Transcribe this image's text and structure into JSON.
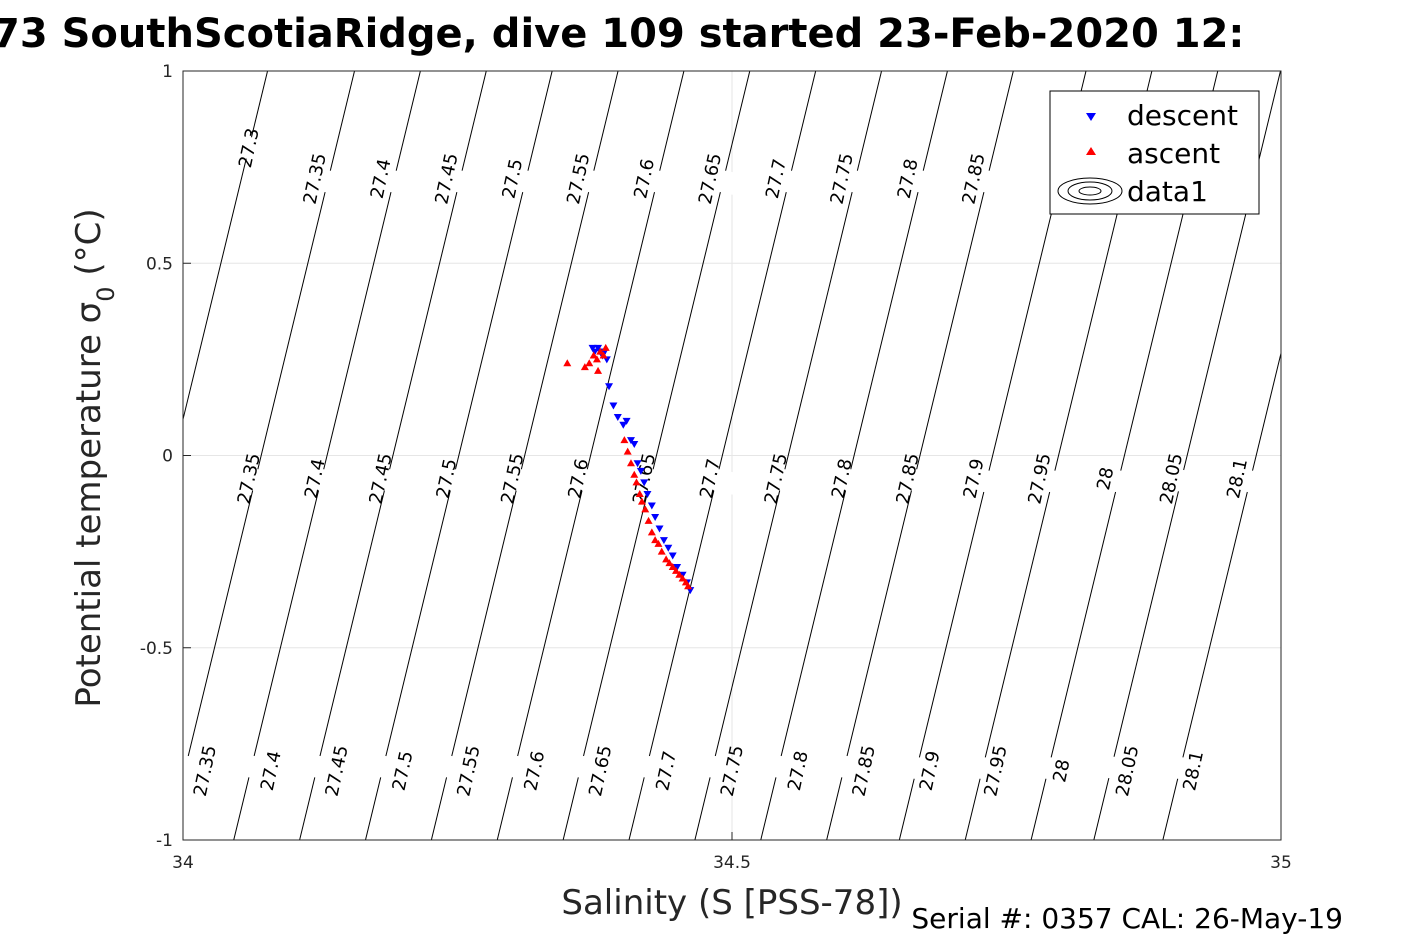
{
  "chart_data": {
    "type": "scatter",
    "title": "73 SouthScotiaRidge, dive 109 started 23-Feb-2020 12:",
    "xlabel": "Salinity (S [PSS-78])",
    "ylabel_main": "Potential temperature σ",
    "ylabel_sub": "0",
    "ylabel_unit": " (°C)",
    "xlim": [
      34,
      35
    ],
    "ylim": [
      -1,
      1
    ],
    "xticks": [
      34,
      34.5,
      35
    ],
    "xtick_labels": [
      "34",
      "34.5",
      "35"
    ],
    "yticks": [
      -1,
      -0.5,
      0,
      0.5,
      1
    ],
    "ytick_labels": [
      "-1",
      "-0.5",
      "0",
      "0.5",
      "1"
    ],
    "grid": true,
    "legend_position": "top-right",
    "legend": [
      "descent",
      "ascent",
      "data1"
    ],
    "series": [
      {
        "name": "descent",
        "marker": "triangle-down",
        "color": "#0000ff",
        "x": [
          34.373,
          34.375,
          34.378,
          34.38,
          34.382,
          34.384,
          34.386,
          34.388,
          34.392,
          34.396,
          34.401,
          34.404,
          34.408,
          34.411,
          34.414,
          34.417,
          34.42,
          34.423,
          34.427,
          34.43,
          34.434,
          34.438,
          34.442,
          34.446,
          34.45,
          34.455,
          34.459,
          34.462
        ],
        "y": [
          0.28,
          0.27,
          0.28,
          0.27,
          0.26,
          0.27,
          0.25,
          0.18,
          0.13,
          0.1,
          0.08,
          0.09,
          0.04,
          0.03,
          -0.02,
          -0.04,
          -0.07,
          -0.1,
          -0.13,
          -0.16,
          -0.19,
          -0.22,
          -0.24,
          -0.26,
          -0.29,
          -0.31,
          -0.33,
          -0.35
        ]
      },
      {
        "name": "ascent",
        "marker": "triangle-up",
        "color": "#ff0000",
        "x": [
          34.35,
          34.366,
          34.37,
          34.374,
          34.377,
          34.38,
          34.383,
          34.385,
          34.378,
          34.402,
          34.405,
          34.408,
          34.411,
          34.413,
          34.416,
          34.418,
          34.421,
          34.424,
          34.427,
          34.43,
          34.433,
          34.436,
          34.44,
          34.443,
          34.446,
          34.449,
          34.452,
          34.455,
          34.458,
          34.46
        ],
        "y": [
          0.24,
          0.23,
          0.24,
          0.26,
          0.25,
          0.27,
          0.26,
          0.28,
          0.22,
          0.04,
          0.01,
          -0.02,
          -0.05,
          -0.07,
          -0.1,
          -0.12,
          -0.14,
          -0.17,
          -0.2,
          -0.22,
          -0.23,
          -0.25,
          -0.27,
          -0.28,
          -0.29,
          -0.3,
          -0.31,
          -0.32,
          -0.33,
          -0.34
        ]
      }
    ],
    "contours": [
      {
        "level": "27.3",
        "labels": [
          {
            "x": 34.06,
            "y": 0.8
          }
        ]
      },
      {
        "level": "27.35",
        "labels": [
          {
            "x": 34.12,
            "y": 0.72
          },
          {
            "x": 34.06,
            "y": -0.06
          },
          {
            "x": 34.02,
            "y": -0.82
          }
        ]
      },
      {
        "level": "27.4",
        "labels": [
          {
            "x": 34.18,
            "y": 0.72
          },
          {
            "x": 34.12,
            "y": -0.06
          },
          {
            "x": 34.08,
            "y": -0.82
          }
        ]
      },
      {
        "level": "27.45",
        "labels": [
          {
            "x": 34.24,
            "y": 0.72
          },
          {
            "x": 34.18,
            "y": -0.06
          },
          {
            "x": 34.14,
            "y": -0.82
          }
        ]
      },
      {
        "level": "27.5",
        "labels": [
          {
            "x": 34.3,
            "y": 0.72
          },
          {
            "x": 34.24,
            "y": -0.06
          },
          {
            "x": 34.2,
            "y": -0.82
          }
        ]
      },
      {
        "level": "27.55",
        "labels": [
          {
            "x": 34.36,
            "y": 0.72
          },
          {
            "x": 34.3,
            "y": -0.06
          },
          {
            "x": 34.26,
            "y": -0.82
          }
        ]
      },
      {
        "level": "27.6",
        "labels": [
          {
            "x": 34.42,
            "y": 0.72
          },
          {
            "x": 34.36,
            "y": -0.06
          },
          {
            "x": 34.32,
            "y": -0.82
          }
        ]
      },
      {
        "level": "27.65",
        "labels": [
          {
            "x": 34.48,
            "y": 0.72
          },
          {
            "x": 34.42,
            "y": -0.06
          },
          {
            "x": 34.38,
            "y": -0.82
          }
        ]
      },
      {
        "level": "27.7",
        "labels": [
          {
            "x": 34.54,
            "y": 0.72
          },
          {
            "x": 34.48,
            "y": -0.06
          },
          {
            "x": 34.44,
            "y": -0.82
          }
        ]
      },
      {
        "level": "27.75",
        "labels": [
          {
            "x": 34.6,
            "y": 0.72
          },
          {
            "x": 34.54,
            "y": -0.06
          },
          {
            "x": 34.5,
            "y": -0.82
          }
        ]
      },
      {
        "level": "27.8",
        "labels": [
          {
            "x": 34.66,
            "y": 0.72
          },
          {
            "x": 34.6,
            "y": -0.06
          },
          {
            "x": 34.56,
            "y": -0.82
          }
        ]
      },
      {
        "level": "27.85",
        "labels": [
          {
            "x": 34.72,
            "y": 0.72
          },
          {
            "x": 34.66,
            "y": -0.06
          },
          {
            "x": 34.62,
            "y": -0.82
          }
        ]
      },
      {
        "level": "27.9",
        "labels": [
          {
            "x": 34.72,
            "y": -0.06
          },
          {
            "x": 34.68,
            "y": -0.82
          }
        ]
      },
      {
        "level": "27.95",
        "labels": [
          {
            "x": 34.78,
            "y": -0.06
          },
          {
            "x": 34.74,
            "y": -0.82
          }
        ]
      },
      {
        "level": "28",
        "labels": [
          {
            "x": 34.84,
            "y": -0.06
          },
          {
            "x": 34.8,
            "y": -0.82
          }
        ]
      },
      {
        "level": "28.05",
        "labels": [
          {
            "x": 34.9,
            "y": -0.06
          },
          {
            "x": 34.86,
            "y": -0.82
          },
          {
            "x": 34.97,
            "y": 0.72
          }
        ]
      },
      {
        "level": "28.1",
        "labels": [
          {
            "x": 34.96,
            "y": -0.06
          },
          {
            "x": 34.92,
            "y": -0.82
          }
        ]
      }
    ]
  },
  "footer": {
    "serial": "Serial #: 0357  CAL: 26-May-19"
  },
  "colors": {
    "descent": "#0000ff",
    "ascent": "#ff0000",
    "contour": "#000000",
    "grid": "#e6e6e6",
    "axis": "#262626"
  }
}
